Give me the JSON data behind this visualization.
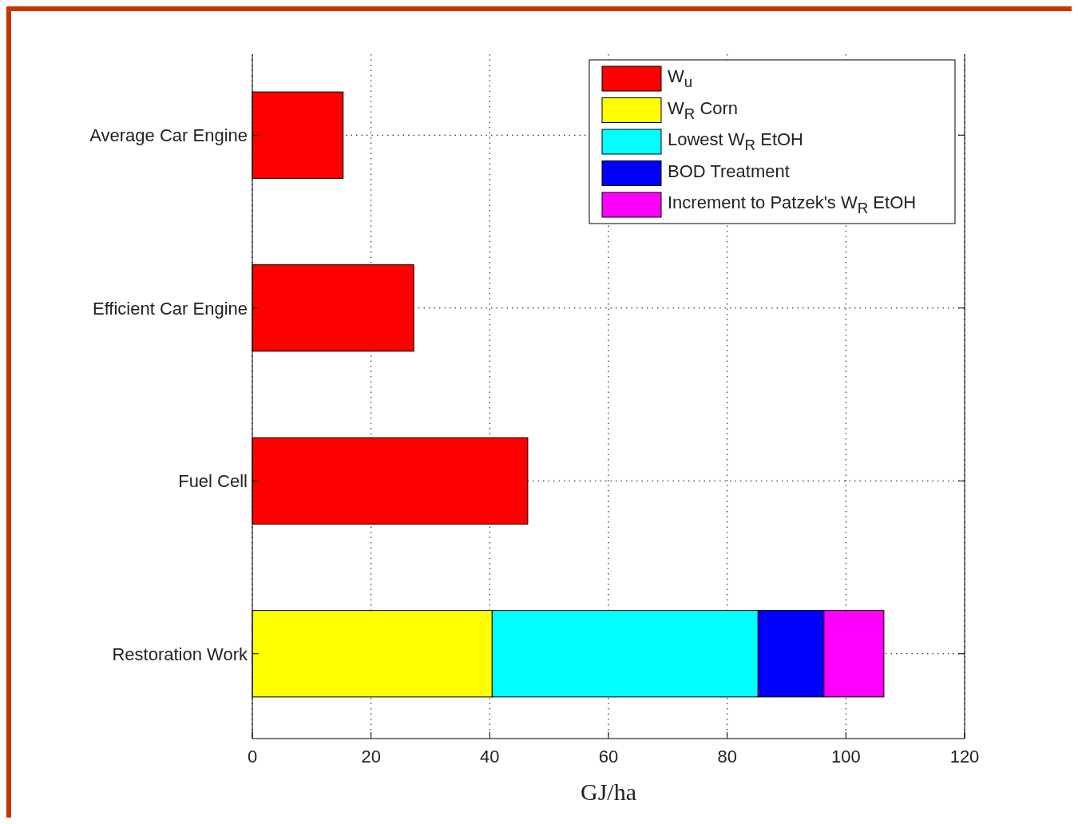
{
  "chart_data": {
    "type": "bar",
    "orientation": "horizontal",
    "stacked": true,
    "xlabel": "GJ/ha",
    "categories": [
      "Average Car Engine",
      "Efficient Car Engine",
      "Fuel Cell",
      "Restoration Work"
    ],
    "series": [
      {
        "name": "W$_{u}$",
        "color": "#ff0000",
        "values": [
          15.3,
          27.2,
          46.4,
          null
        ]
      },
      {
        "name": "W$_{R}$ Corn",
        "color": "#ffff00",
        "values": [
          null,
          null,
          null,
          40.4
        ]
      },
      {
        "name": "Lowest W$_{R}$ EtOH",
        "color": "#00ffff",
        "values": [
          null,
          null,
          null,
          44.8
        ]
      },
      {
        "name": "BOD Treatment",
        "color": "#0000ff",
        "values": [
          null,
          null,
          null,
          11.1
        ]
      },
      {
        "name": "Increment to Patzek's W$_{R}$ EtOH",
        "color": "#ff00ff",
        "values": [
          null,
          null,
          null,
          10.1
        ]
      }
    ],
    "xlim": [
      0,
      120
    ],
    "xticks": [
      0,
      20,
      40,
      60,
      80,
      100,
      120
    ],
    "grid": true,
    "legend": "top right"
  }
}
